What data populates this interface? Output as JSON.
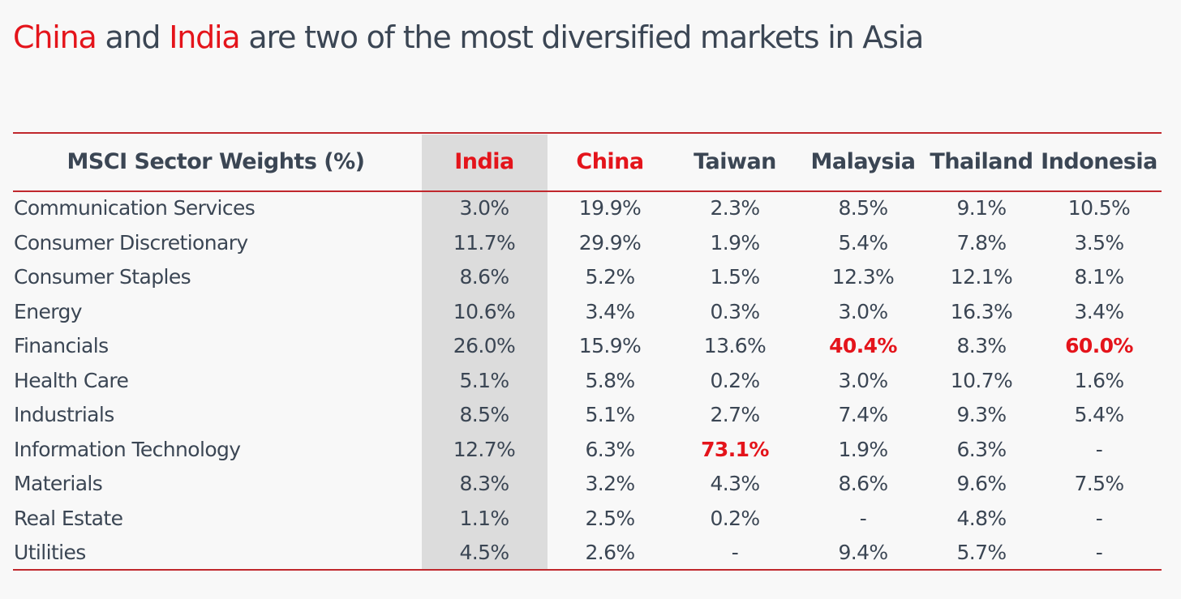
{
  "title": {
    "accent_1": "China",
    "and": "and",
    "accent_2": "India",
    "rest": "are two of the most diversified markets in Asia"
  },
  "chart_data": {
    "type": "table",
    "header_label": "MSCI Sector Weights (%)",
    "columns": [
      "India",
      "China",
      "Taiwan",
      "Malaysia",
      "Thailand",
      "Indonesia"
    ],
    "highlight_color": "#e4141b",
    "highlighted_column": "India",
    "rows": [
      {
        "sector": "Communication Services",
        "values": [
          "3.0%",
          "19.9%",
          "2.3%",
          "8.5%",
          "9.1%",
          "10.5%"
        ],
        "highlight": []
      },
      {
        "sector": "Consumer Discretionary",
        "values": [
          "11.7%",
          "29.9%",
          "1.9%",
          "5.4%",
          "7.8%",
          "3.5%"
        ],
        "highlight": []
      },
      {
        "sector": "Consumer Staples",
        "values": [
          "8.6%",
          "5.2%",
          "1.5%",
          "12.3%",
          "12.1%",
          "8.1%"
        ],
        "highlight": []
      },
      {
        "sector": "Energy",
        "values": [
          "10.6%",
          "3.4%",
          "0.3%",
          "3.0%",
          "16.3%",
          "3.4%"
        ],
        "highlight": []
      },
      {
        "sector": "Financials",
        "values": [
          "26.0%",
          "15.9%",
          "13.6%",
          "40.4%",
          "8.3%",
          "60.0%"
        ],
        "highlight": [
          3,
          5
        ]
      },
      {
        "sector": "Health Care",
        "values": [
          "5.1%",
          "5.8%",
          "0.2%",
          "3.0%",
          "10.7%",
          "1.6%"
        ],
        "highlight": []
      },
      {
        "sector": "Industrials",
        "values": [
          "8.5%",
          "5.1%",
          "2.7%",
          "7.4%",
          "9.3%",
          "5.4%"
        ],
        "highlight": []
      },
      {
        "sector": "Information Technology",
        "values": [
          "12.7%",
          "6.3%",
          "73.1%",
          "1.9%",
          "6.3%",
          "-"
        ],
        "highlight": [
          2
        ]
      },
      {
        "sector": "Materials",
        "values": [
          "8.3%",
          "3.2%",
          "4.3%",
          "8.6%",
          "9.6%",
          "7.5%"
        ],
        "highlight": []
      },
      {
        "sector": "Real Estate",
        "values": [
          "1.1%",
          "2.5%",
          "0.2%",
          "-",
          "4.8%",
          "-"
        ],
        "highlight": []
      },
      {
        "sector": "Utilities",
        "values": [
          "4.5%",
          "2.6%",
          "-",
          "9.4%",
          "5.7%",
          "-"
        ],
        "highlight": []
      }
    ]
  }
}
